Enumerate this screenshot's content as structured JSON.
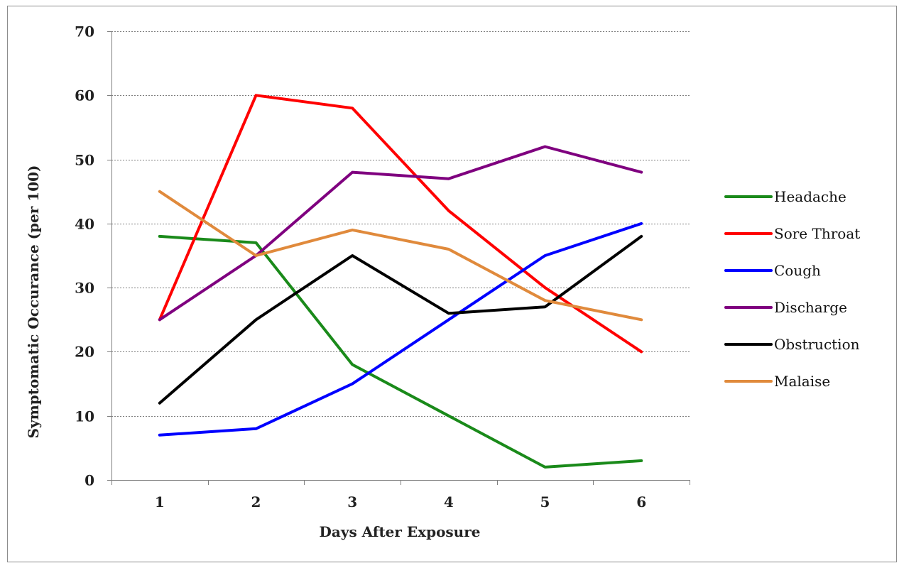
{
  "chart_data": {
    "type": "line",
    "title": "",
    "xlabel": "Days After Exposure",
    "ylabel": "Symptomatic Occurance (per 100)",
    "x": [
      1,
      2,
      3,
      4,
      5,
      6
    ],
    "x_tick_labels": [
      "1",
      "2",
      "3",
      "4",
      "5",
      "6"
    ],
    "ylim": [
      0,
      70
    ],
    "y_ticks": [
      0,
      10,
      20,
      30,
      40,
      50,
      60,
      70
    ],
    "y_tick_labels": [
      "0",
      "10",
      "20",
      "30",
      "40",
      "50",
      "60",
      "70"
    ],
    "grid": "horizontal dotted",
    "legend_position": "right",
    "series": [
      {
        "name": "Headache",
        "color": "#1a8a1a",
        "values": [
          38,
          37,
          18,
          10,
          2,
          3
        ]
      },
      {
        "name": "Sore Throat",
        "color": "#ff0000",
        "values": [
          25,
          60,
          58,
          42,
          30,
          20
        ]
      },
      {
        "name": "Cough",
        "color": "#0000ff",
        "values": [
          7,
          8,
          15,
          25,
          35,
          40
        ]
      },
      {
        "name": "Discharge",
        "color": "#7f007f",
        "values": [
          25,
          35,
          48,
          47,
          52,
          48
        ]
      },
      {
        "name": "Obstruction",
        "color": "#000000",
        "values": [
          12,
          25,
          35,
          26,
          27,
          38
        ]
      },
      {
        "name": "Malaise",
        "color": "#e08a3c",
        "values": [
          45,
          35,
          39,
          36,
          28,
          25
        ]
      }
    ]
  }
}
